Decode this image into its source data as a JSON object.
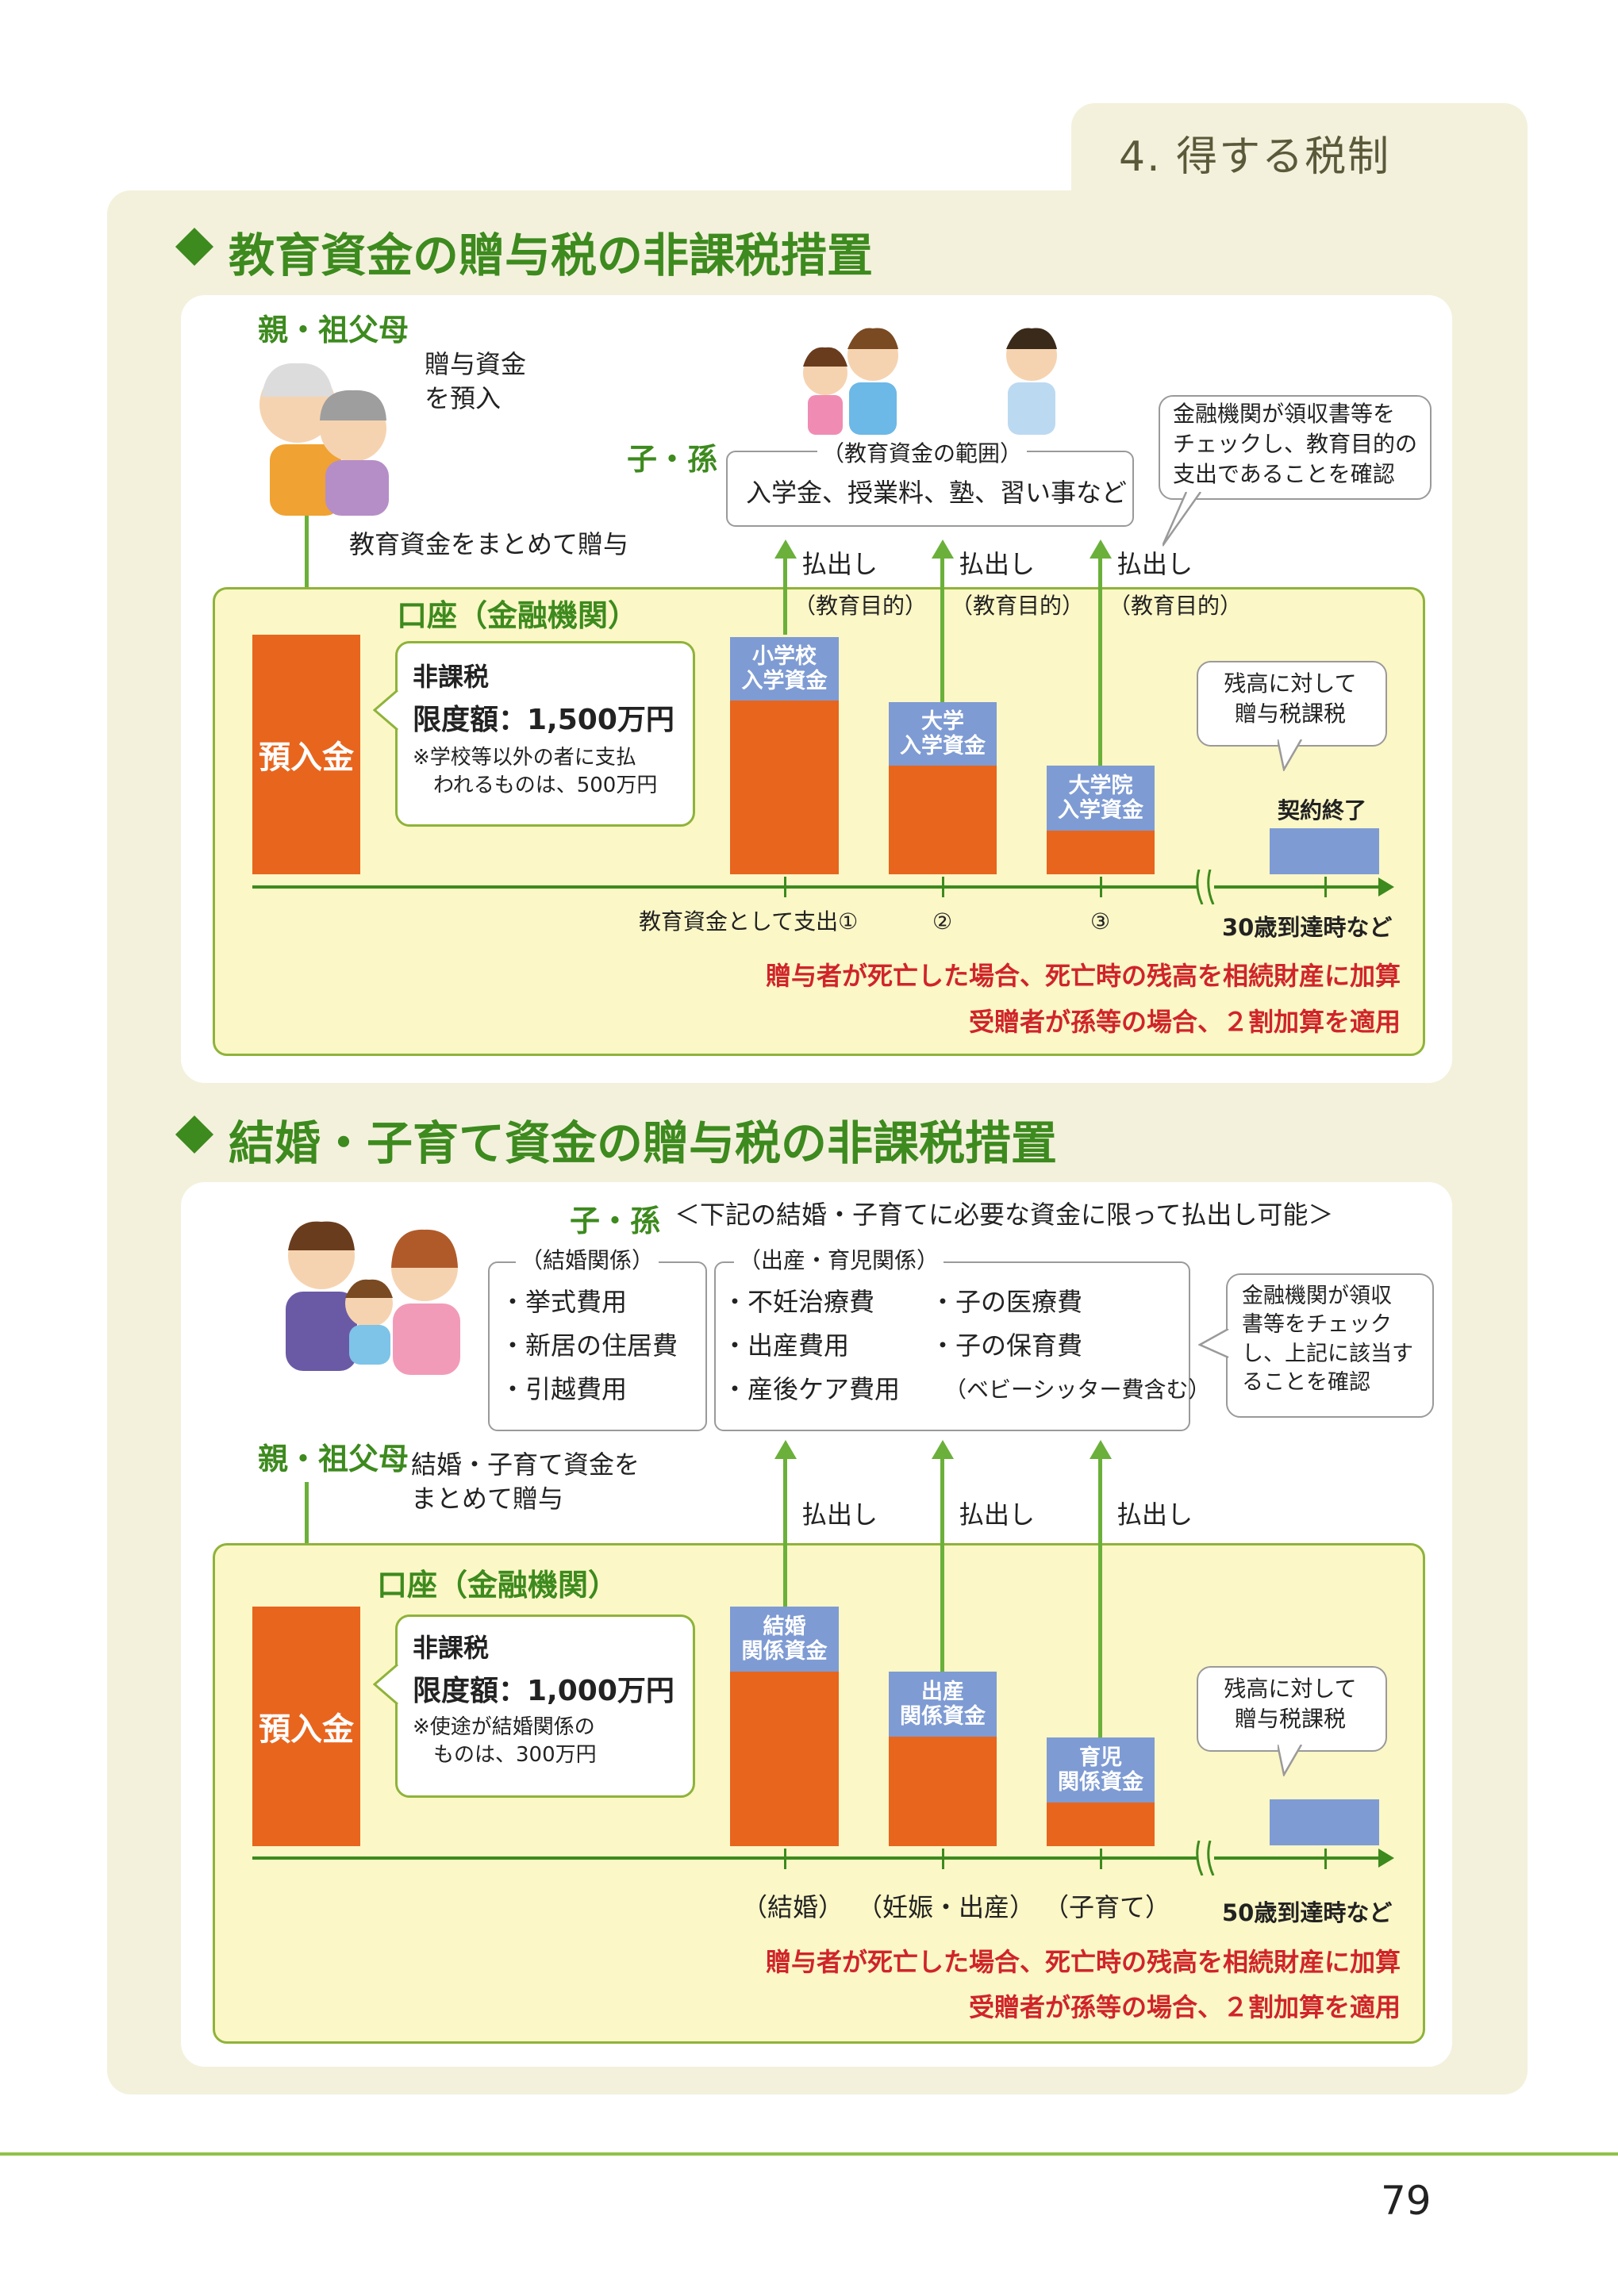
{
  "header": {
    "section_tab": "4. 得する税制"
  },
  "edu": {
    "title": "教育資金の贈与税の非課税措置",
    "giver_label": "親・祖父母",
    "deposit_note": "贈与資金\nを預入",
    "lump_note": "教育資金をまとめて贈与",
    "receiver_label": "子・孫",
    "range_title": "（教育資金の範囲）",
    "range_text": "入学金、授業料、塾、習い事など",
    "bank_check_note": "金融機関が領収書等を\nチェックし、教育目的の\n支出であることを確認",
    "withdraw_label": "払出し",
    "withdraw_purpose": "（教育目的）",
    "account_label": "口座（金融機関）",
    "deposit_label": "預入金",
    "tax_free": "非課税",
    "limit": "限度額：1,500万円",
    "limit_note": "※学校等以外の者に支払\n　われるものは、500万円",
    "bars": [
      {
        "label": "小学校\n入学資金",
        "remaining_fraction": 0.71
      },
      {
        "label": "大学\n入学資金",
        "remaining_fraction": 0.44
      },
      {
        "label": "大学院\n入学資金",
        "remaining_fraction": 0.2
      }
    ],
    "remaining_tax_note": "残高に対して\n贈与税課税",
    "contract_end": "契約終了",
    "axis_labels": [
      "教育資金として支出①",
      "②",
      "③"
    ],
    "end_label": "30歳到達時など",
    "red_note_1": "贈与者が死亡した場合、死亡時の残高を相続財産に加算",
    "red_note_2": "受贈者が孫等の場合、２割加算を適用"
  },
  "marriage": {
    "title": "結婚・子育て資金の贈与税の非課税措置",
    "receiver_label": "子・孫",
    "receiver_note": "＜下記の結婚・子育てに必要な資金に限って払出し可能＞",
    "marriage_title": "（結婚関係）",
    "marriage_items": [
      "・挙式費用",
      "・新居の住居費",
      "・引越費用"
    ],
    "birth_title": "（出産・育児関係）",
    "birth_items_left": [
      "・不妊治療費",
      "・出産費用",
      "・産後ケア費用"
    ],
    "birth_items_right": [
      "・子の医療費",
      "・子の保育費",
      "（ベビーシッター費含む）"
    ],
    "bank_check_note": "金融機関が領収\n書等をチェック\nし、上記に該当す\nることを確認",
    "giver_label": "親・祖父母",
    "lump_note": "結婚・子育て資金を\nまとめて贈与",
    "withdraw_label": "払出し",
    "account_label": "口座（金融機関）",
    "deposit_label": "預入金",
    "tax_free": "非課税",
    "limit": "限度額：1,000万円",
    "limit_note": "※使途が結婚関係の\n　ものは、300万円",
    "bars": [
      {
        "label": "結婚\n関係資金",
        "remaining_fraction": 0.71
      },
      {
        "label": "出産\n関係資金",
        "remaining_fraction": 0.44
      },
      {
        "label": "育児\n関係資金",
        "remaining_fraction": 0.2
      }
    ],
    "remaining_tax_note": "残高に対して\n贈与税課税",
    "axis_labels": [
      "（結婚）",
      "（妊娠・出産）",
      "（子育て）"
    ],
    "end_label": "50歳到達時など",
    "red_note_1": "贈与者が死亡した場合、死亡時の残高を相続財産に加算",
    "red_note_2": "受贈者が孫等の場合、２割加算を適用"
  },
  "page_number": "79"
}
